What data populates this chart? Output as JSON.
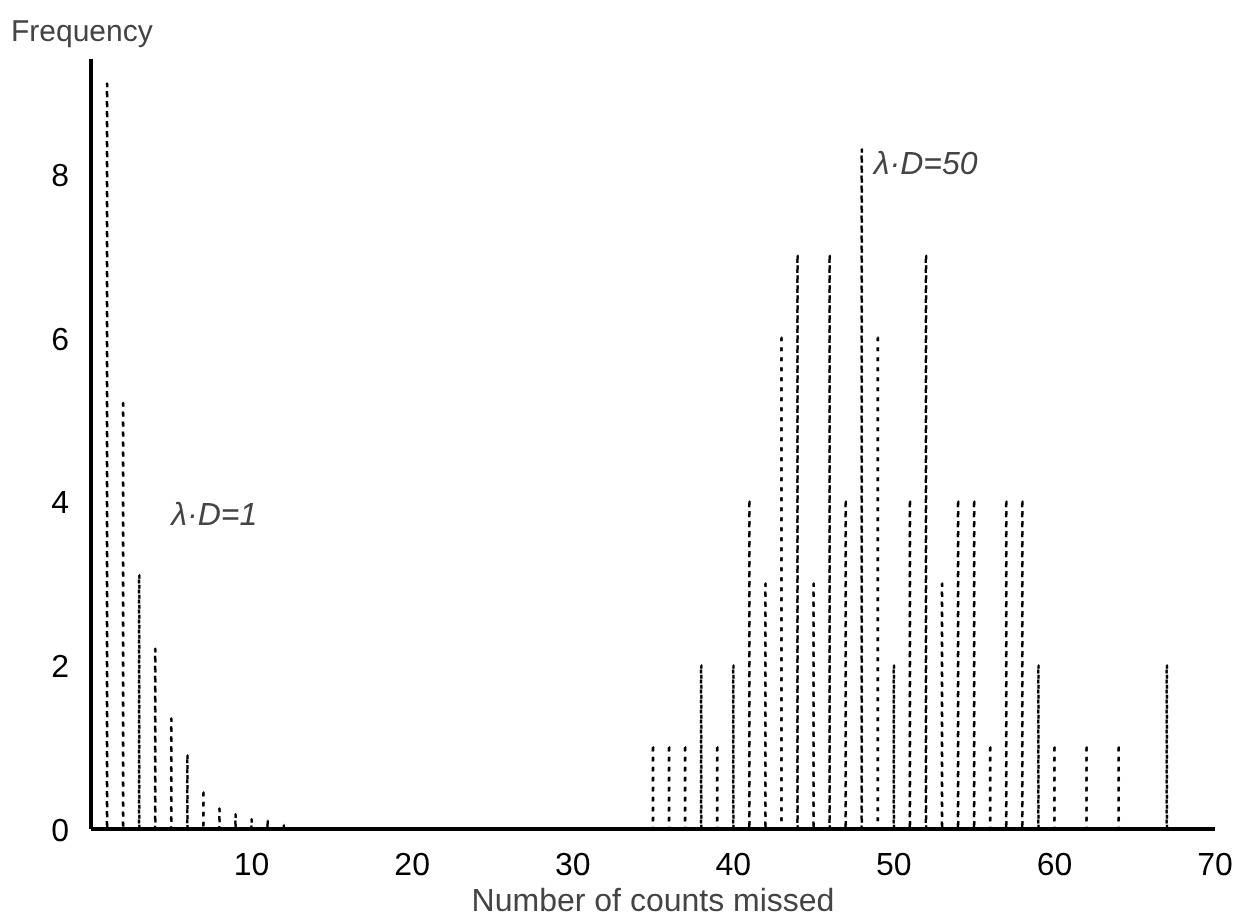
{
  "chart_data": {
    "type": "bar",
    "xlabel": "Number of counts missed",
    "ylabel": "Frequency",
    "series": [
      {
        "color": "#000000",
        "x": [
          1,
          2,
          3,
          4,
          5,
          6,
          7,
          8,
          9,
          10,
          11,
          12
        ],
        "values": [
          9.1,
          5.2,
          3.1,
          2.2,
          1.35,
          0.9,
          0.45,
          0.25,
          0.18,
          0.12,
          0.1,
          0.05
        ]
      },
      {
        "color": "#000000",
        "x": [
          35,
          36,
          37,
          38,
          39,
          40,
          41,
          42,
          43,
          44,
          45,
          46,
          47,
          48,
          49,
          50,
          51,
          52,
          53,
          54,
          55,
          56,
          57,
          58,
          59,
          60,
          61,
          62,
          63,
          64,
          65,
          66,
          67
        ],
        "values": [
          1,
          1,
          1,
          2,
          1,
          2,
          4,
          3,
          6,
          7,
          3,
          7,
          4,
          8.3,
          6,
          2,
          4,
          7,
          3,
          4,
          4,
          1,
          4,
          4,
          2,
          1,
          0,
          1,
          0,
          1,
          0,
          0,
          2
        ]
      }
    ],
    "line_style": "dotted",
    "annotations": [
      "λ·D=1",
      "λ·D=50"
    ],
    "xlim": [
      0,
      70
    ],
    "ylim": [
      0,
      9.4
    ],
    "xticks": [
      10,
      20,
      30,
      40,
      50,
      60,
      70
    ],
    "yticks": [
      0,
      2,
      4,
      6,
      8
    ],
    "grid": false
  }
}
